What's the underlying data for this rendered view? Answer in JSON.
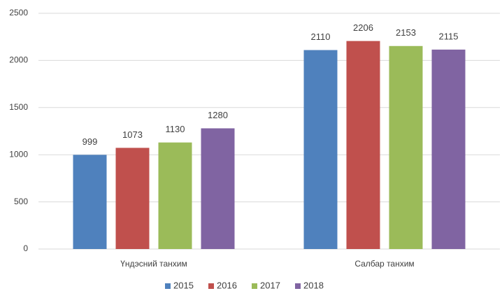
{
  "chart_data": {
    "type": "bar",
    "categories": [
      "Үндэсний танхим",
      "Салбар танхим"
    ],
    "series": [
      {
        "name": "2015",
        "color": "#4f81bd",
        "values": [
          999,
          2110
        ]
      },
      {
        "name": "2016",
        "color": "#c0504d",
        "values": [
          1073,
          2206
        ]
      },
      {
        "name": "2017",
        "color": "#9bbb59",
        "values": [
          1130,
          2153
        ]
      },
      {
        "name": "2018",
        "color": "#8064a2",
        "values": [
          1280,
          2115
        ]
      }
    ],
    "ylim": [
      0,
      2500
    ],
    "yticks": [
      0,
      500,
      1000,
      1500,
      2000,
      2500
    ],
    "grid": true,
    "legend": "bottom"
  }
}
